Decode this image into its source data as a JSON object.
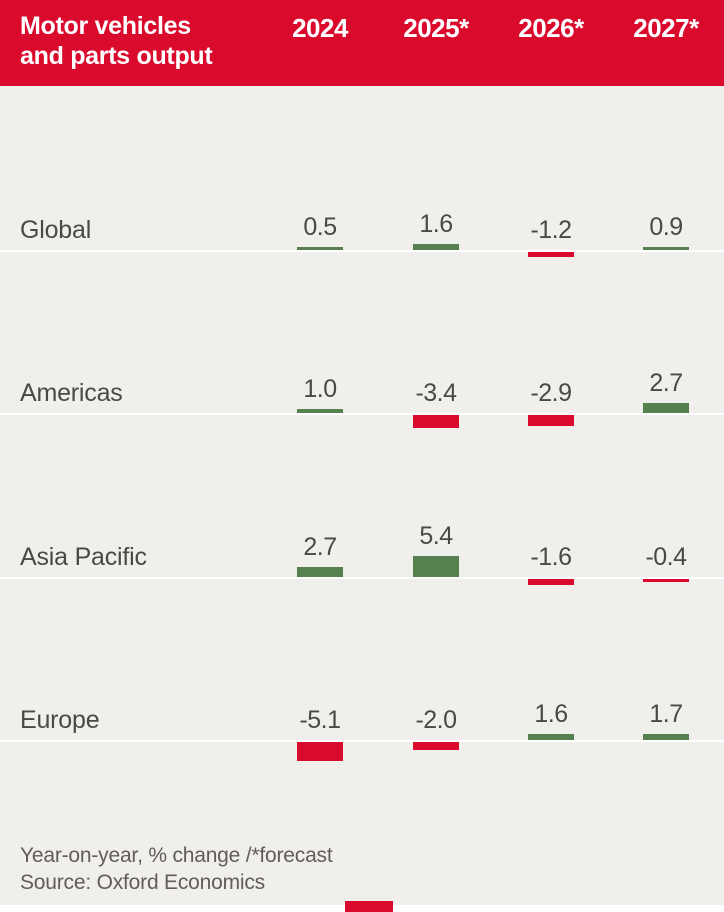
{
  "header": {
    "title_line1": "Motor vehicles",
    "title_line2": "and parts output",
    "background": "#da0a2d",
    "text_color": "#ffffff"
  },
  "chart_data": {
    "type": "bar",
    "title": "Motor vehicles and parts output",
    "subtitle": "Year-on-year, % change /*forecast",
    "columns": [
      "2024",
      "2025*",
      "2026*",
      "2027*"
    ],
    "rows": [
      {
        "label": "Global",
        "values": [
          "0.5",
          "1.6",
          "-1.2",
          "0.9"
        ]
      },
      {
        "label": "Americas",
        "values": [
          "1.0",
          "-3.4",
          "-2.9",
          "2.7"
        ]
      },
      {
        "label": "Asia Pacific",
        "values": [
          "2.7",
          "5.4",
          "-1.6",
          "-0.4"
        ]
      },
      {
        "label": "Europe",
        "values": [
          "-5.1",
          "-2.0",
          "1.6",
          "1.7"
        ]
      }
    ],
    "positive_color": "#56814f",
    "negative_color": "#da0a2d",
    "legend_position": "none",
    "grid": "baseline-only",
    "orientation": "columns-per-year"
  },
  "footer": {
    "note": "Year-on-year, % change /*forecast",
    "source": "Source: Oxford Economics"
  },
  "colors": {
    "background": "#f0efeb",
    "header_background": "#da0a2d",
    "header_text": "#ffffff",
    "label_text": "#4a4944",
    "value_text": "#4a4944",
    "footer_text": "#615e58",
    "baseline": "#ffffff",
    "positive_bar": "#56814f",
    "negative_bar": "#da0a2d",
    "brand_mark": "#da0a2d"
  }
}
